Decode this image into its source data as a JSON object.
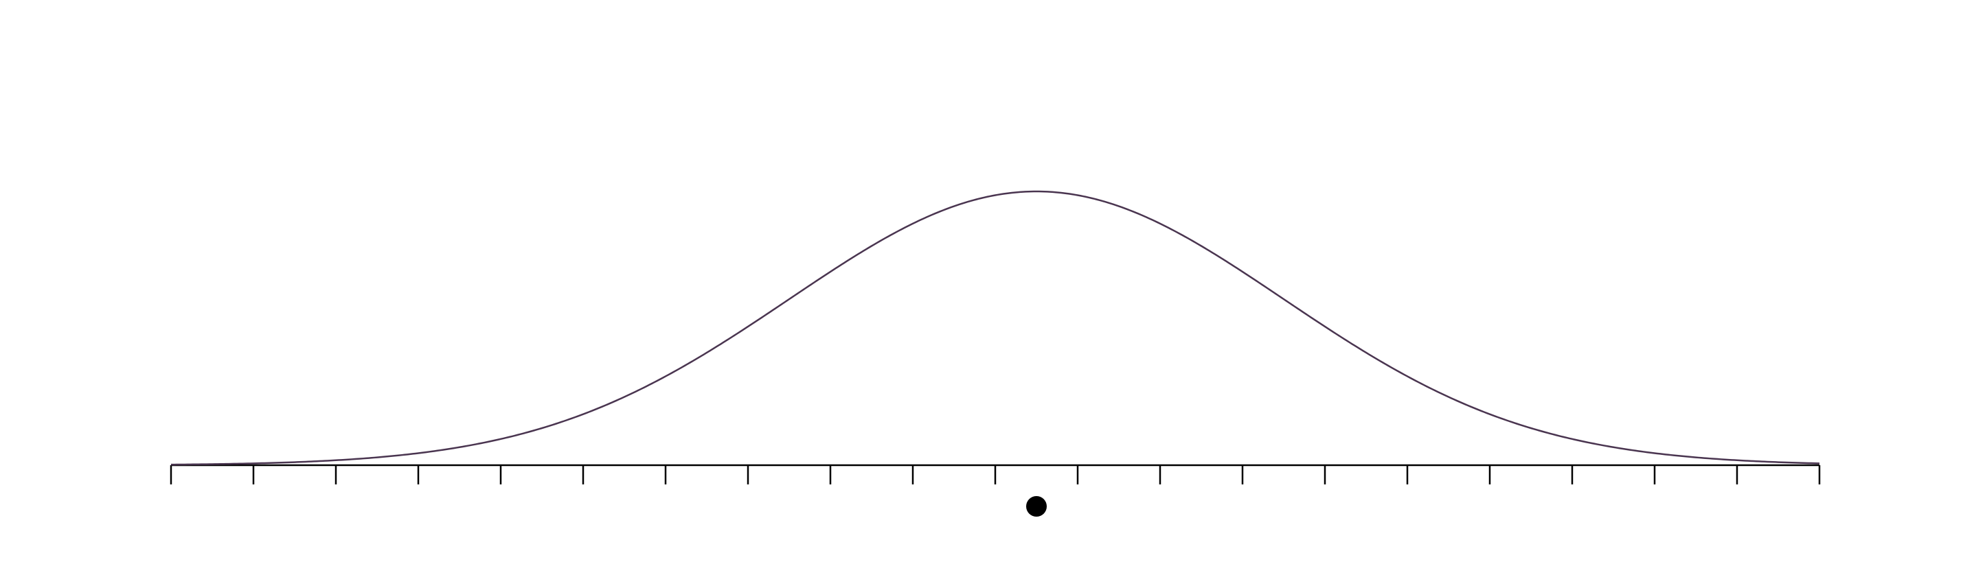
{
  "chart_data": {
    "type": "line",
    "title": "",
    "xlabel": "",
    "ylabel": "",
    "grid": false,
    "legend": "none",
    "xlim": [
      -10,
      10
    ],
    "ylim": [
      0,
      1
    ],
    "x_ticks": [
      -10,
      -9,
      -8,
      -7,
      -6,
      -5,
      -4,
      -3,
      -2,
      -1,
      0,
      1,
      2,
      3,
      4,
      5,
      6,
      7,
      8,
      9,
      10
    ],
    "tick_labels_shown": false,
    "series": [
      {
        "name": "",
        "distribution": "normal",
        "mean": 0.5,
        "sd": 3,
        "peak_y": 1,
        "color": "#4a3550"
      }
    ],
    "marker": {
      "x": 0.5,
      "color": "#000000"
    },
    "axis_color": "#000000"
  }
}
